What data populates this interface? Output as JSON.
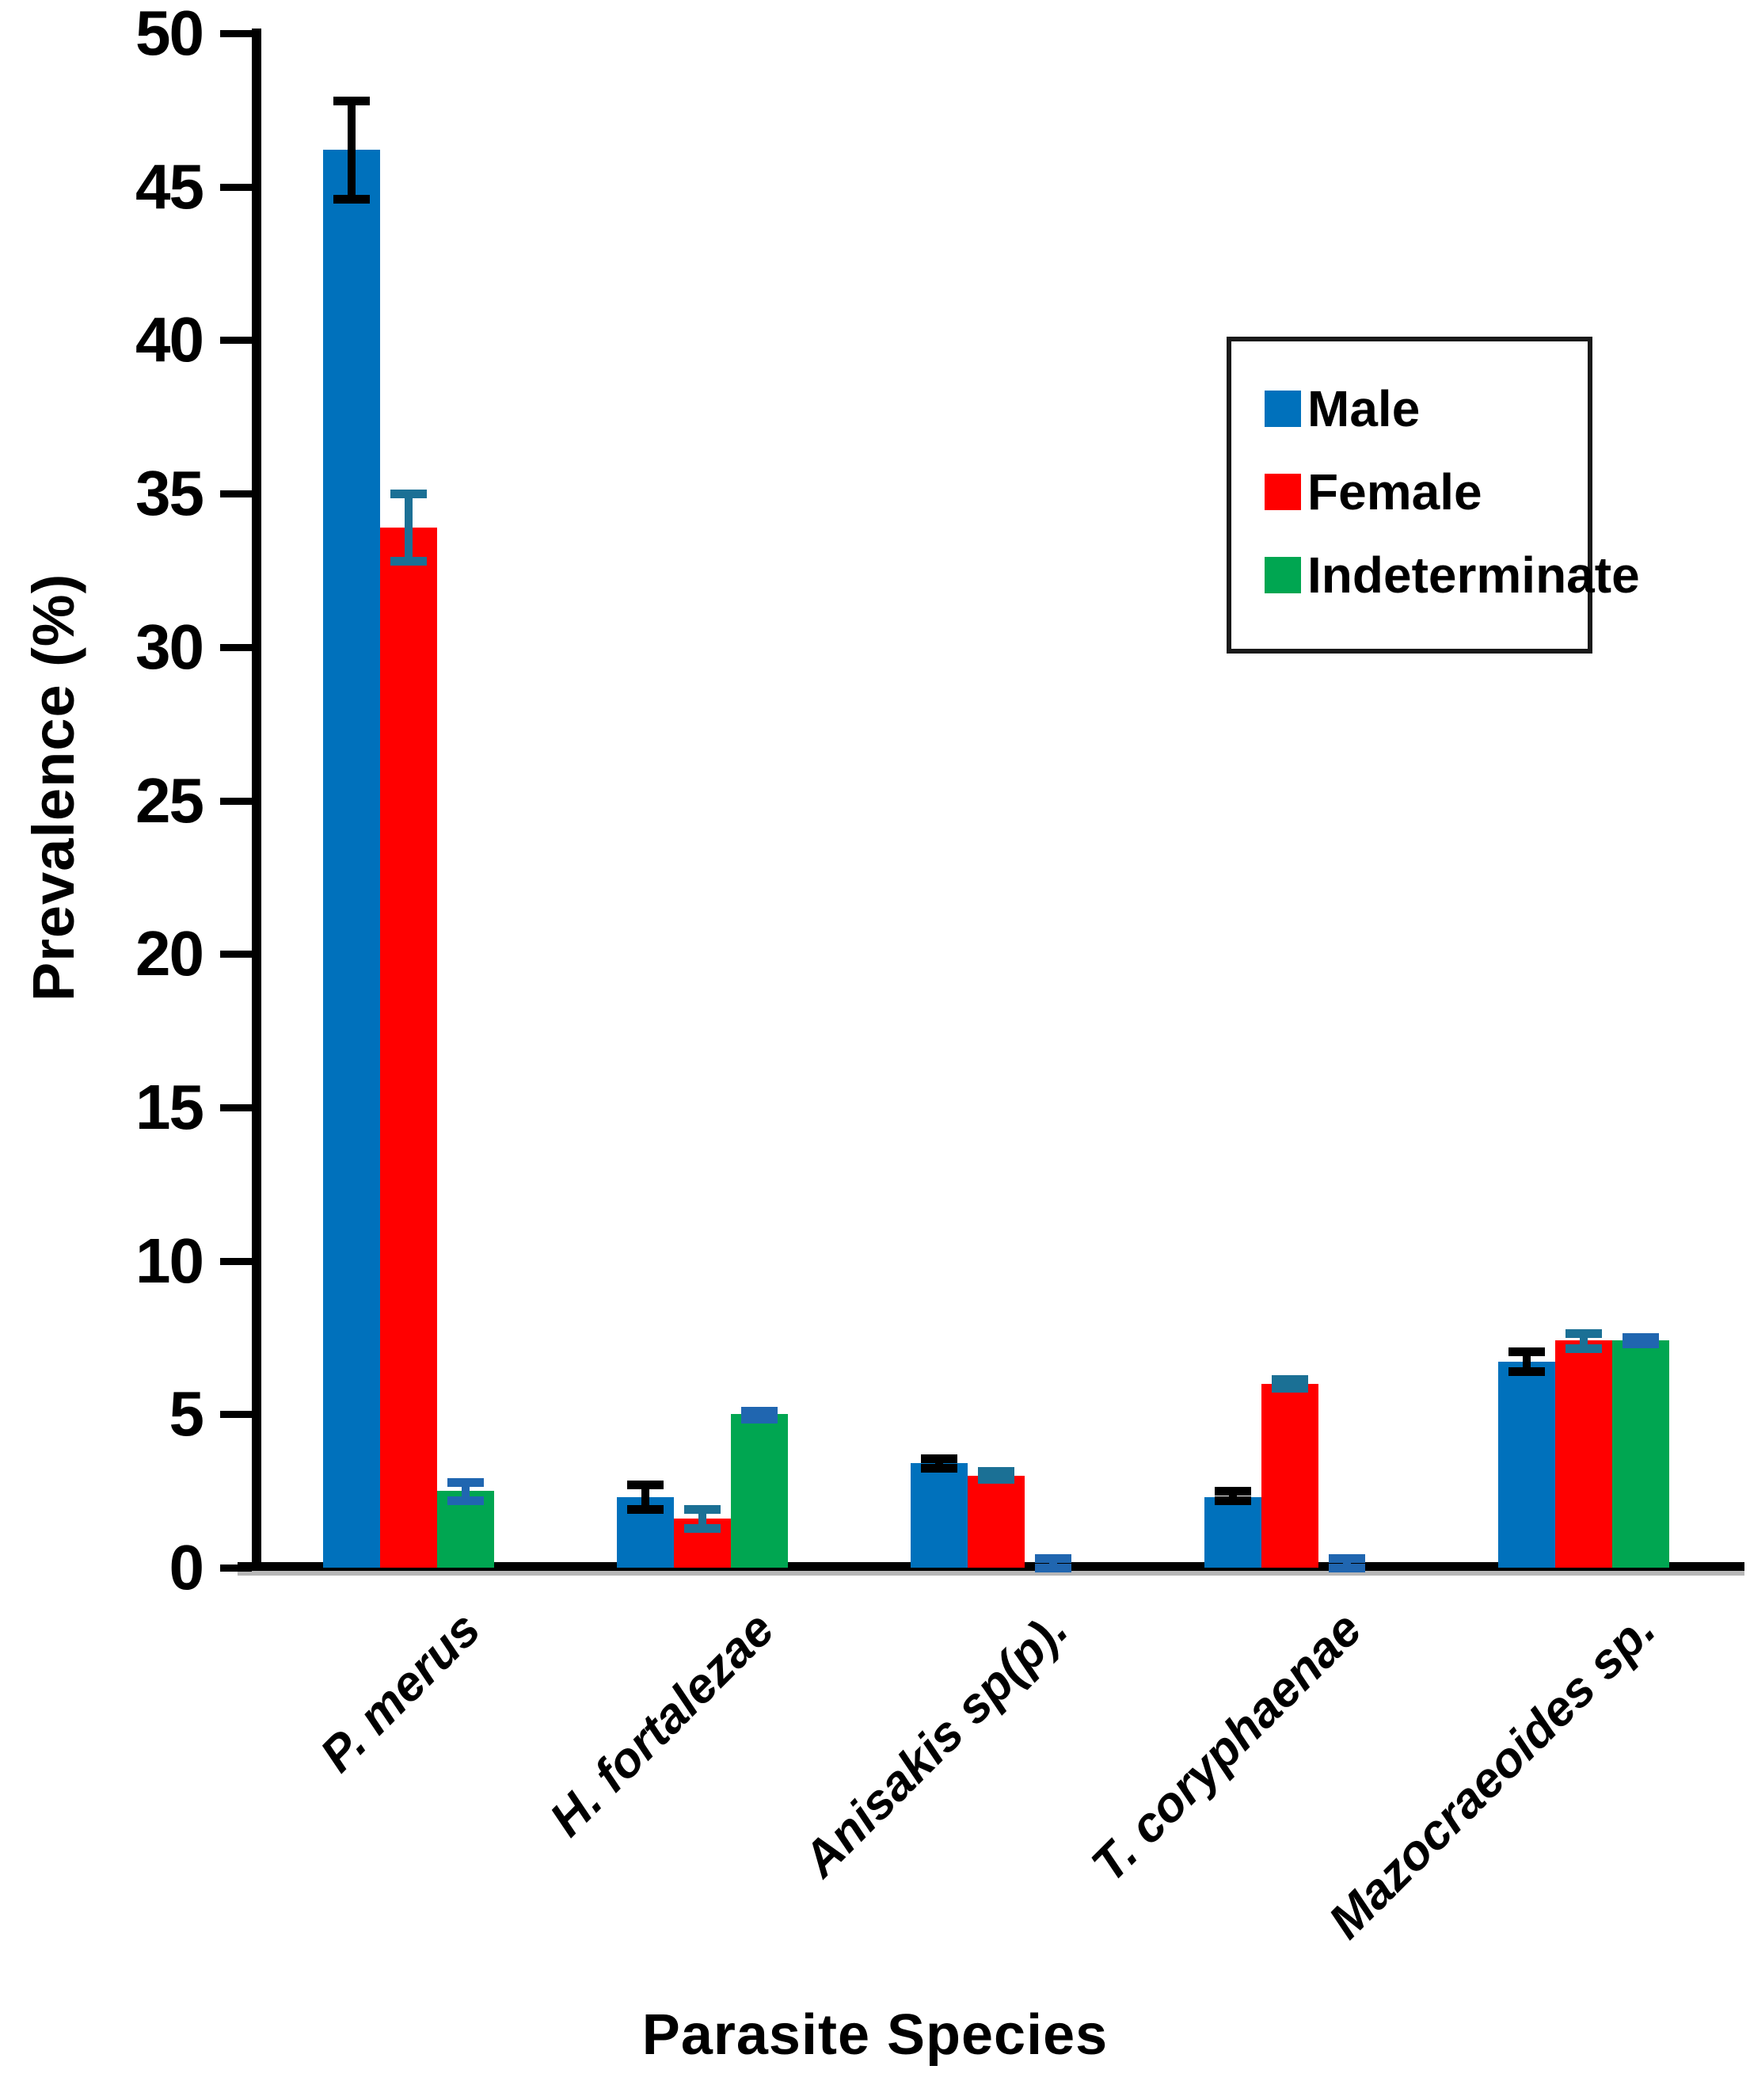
{
  "chart_data": {
    "type": "bar",
    "title": "",
    "xlabel": "Parasite Species",
    "ylabel": "Prevalence (%)",
    "ylim": [
      0,
      50
    ],
    "yticks": [
      0,
      5,
      10,
      15,
      20,
      25,
      30,
      35,
      40,
      45,
      50
    ],
    "grid": false,
    "legend_position": "upper right",
    "background_color": "#ffffff",
    "axis_color": "#000000",
    "categories": [
      "P. merus",
      "H. fortalezae",
      "Anisakis sp(p).",
      "T. coryphaenae",
      "Mazocraeoides sp."
    ],
    "series": [
      {
        "name": "Male",
        "color": "#0071BC",
        "error_color": "#000000",
        "values": [
          46.2,
          2.3,
          3.4,
          2.3,
          6.7
        ],
        "error_low": [
          44.6,
          1.9,
          3.25,
          2.2,
          6.4
        ],
        "error_high": [
          47.8,
          2.7,
          3.55,
          2.5,
          7.05
        ]
      },
      {
        "name": "Female",
        "color": "#FF0000",
        "error_color": "#1B7095",
        "values": [
          33.9,
          1.6,
          3.0,
          6.0,
          7.4
        ],
        "error_low": [
          32.8,
          1.3,
          2.9,
          5.85,
          7.15
        ],
        "error_high": [
          35.0,
          1.9,
          3.15,
          6.15,
          7.65
        ]
      },
      {
        "name": "Indeterminate",
        "color": "#00A651",
        "error_color": "#2066B0",
        "values": [
          2.5,
          5.0,
          0,
          0,
          7.4
        ],
        "error_low": [
          2.2,
          4.85,
          0,
          0,
          7.3
        ],
        "error_high": [
          2.8,
          5.1,
          0.3,
          0.3,
          7.5
        ]
      }
    ]
  }
}
